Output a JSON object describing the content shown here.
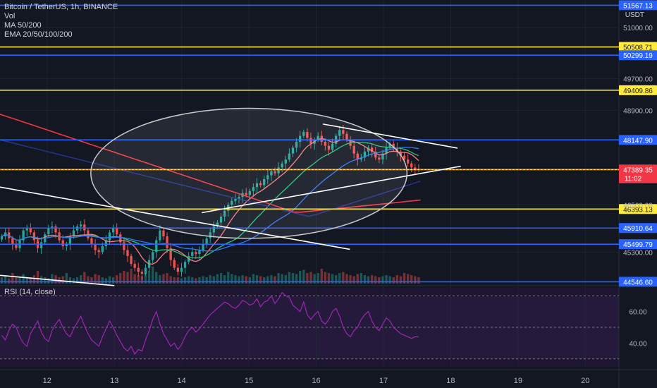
{
  "chart_data": {
    "type": "candlestick",
    "symbol": "Bitcoin / TetherUS, 1h, BINANCE",
    "currency": "USDT",
    "indicators": [
      "Vol",
      "MA 50/200",
      "EMA 20/50/100/200"
    ],
    "price_range": [
      44500,
      51700
    ],
    "price_ticks": [
      {
        "v": 51000,
        "label": "51000.00"
      },
      {
        "v": 49700,
        "label": "49700.00"
      },
      {
        "v": 48900,
        "label": "48900.00"
      },
      {
        "v": 46500,
        "label": "46500.00"
      },
      {
        "v": 45300,
        "label": "45300.00"
      }
    ],
    "x_range": [
      11.3,
      20.5
    ],
    "x_ticks": [
      {
        "x": 12,
        "label": "12"
      },
      {
        "x": 13,
        "label": "13"
      },
      {
        "x": 14,
        "label": "14"
      },
      {
        "x": 15,
        "label": "15"
      },
      {
        "x": 16,
        "label": "16"
      },
      {
        "x": 17,
        "label": "17"
      },
      {
        "x": 18,
        "label": "18"
      },
      {
        "x": 19,
        "label": "19"
      },
      {
        "x": 20,
        "label": "20"
      }
    ],
    "levels": [
      {
        "price": 51567.13,
        "label": "51567.13",
        "color": "#2962ff"
      },
      {
        "price": 50508.71,
        "label": "50508.71",
        "color": "#ffeb3b"
      },
      {
        "price": 50299.19,
        "label": "50299.19",
        "color": "#2962ff"
      },
      {
        "price": 49409.86,
        "label": "49409.86",
        "color": "#ffeb3b"
      },
      {
        "price": 48147.9,
        "label": "48147.90",
        "color": "#2962ff"
      },
      {
        "price": 47393.16,
        "label": "47393.16",
        "color": "#ffeb3b"
      },
      {
        "price": 46393.13,
        "label": "46393.13",
        "color": "#ffeb3b"
      },
      {
        "price": 45910.64,
        "label": "45910.64",
        "color": "#2962ff"
      },
      {
        "price": 45499.79,
        "label": "45499.79",
        "color": "#2962ff"
      },
      {
        "price": 44546.6,
        "label": "44546.60",
        "color": "#2962ff"
      }
    ],
    "last_price": {
      "price": 47389.35,
      "label": "47389.35",
      "countdown": "11:02",
      "color": "#f23645"
    },
    "closes": [
      45700,
      45800,
      45650,
      45500,
      45400,
      45600,
      45850,
      45900,
      45800,
      45600,
      45400,
      45550,
      45750,
      45900,
      45950,
      45800,
      45600,
      45450,
      45500,
      45700,
      45850,
      45950,
      46000,
      45850,
      45650,
      45500,
      45350,
      45300,
      45450,
      45600,
      45800,
      45900,
      45750,
      45550,
      45350,
      45200,
      45000,
      44900,
      44800,
      44750,
      44900,
      45100,
      45300,
      45600,
      45850,
      45700,
      45400,
      45100,
      44900,
      44800,
      44900,
      45050,
      45200,
      45300,
      45250,
      45350,
      45500,
      45650,
      45800,
      45950,
      46050,
      46200,
      46350,
      46500,
      46600,
      46650,
      46700,
      46800,
      46750,
      46850,
      46950,
      47050,
      47000,
      47150,
      47250,
      47350,
      47300,
      47450,
      47550,
      47650,
      47800,
      47950,
      48100,
      48250,
      48350,
      48200,
      48050,
      48150,
      48250,
      48100,
      48000,
      47900,
      48050,
      48250,
      48400,
      48300,
      48150,
      48000,
      47800,
      47650,
      47700,
      47850,
      47950,
      47850,
      47700,
      47650,
      47800,
      47950,
      48050,
      47950,
      47850,
      47750,
      47650,
      47550,
      47450,
      47400,
      47390
    ],
    "volume": [
      0.3,
      0.4,
      0.25,
      0.5,
      0.35,
      0.3,
      0.45,
      0.3,
      0.25,
      0.4,
      0.6,
      0.35,
      0.3,
      0.25,
      0.45,
      0.4,
      0.3,
      0.35,
      0.5,
      0.3,
      0.25,
      0.3,
      0.4,
      0.55,
      0.35,
      0.3,
      0.45,
      0.4,
      0.3,
      0.25,
      0.35,
      0.3,
      0.4,
      0.5,
      0.6,
      0.55,
      0.7,
      0.45,
      0.4,
      0.35,
      0.5,
      0.6,
      0.8,
      0.55,
      0.4,
      0.45,
      0.5,
      0.35,
      0.3,
      0.3,
      0.25,
      0.3,
      0.35,
      0.3,
      0.25,
      0.3,
      0.35,
      0.3,
      0.4,
      0.35,
      0.45,
      0.5,
      0.4,
      0.55,
      0.45,
      0.4,
      0.35,
      0.4,
      0.35,
      0.3,
      0.45,
      0.4,
      0.35,
      0.3,
      0.35,
      0.4,
      0.35,
      0.5,
      0.45,
      0.4,
      0.55,
      0.5,
      0.45,
      0.6,
      0.65,
      0.5,
      0.55,
      0.45,
      0.5,
      0.7,
      0.55,
      0.5,
      0.45,
      0.4,
      0.5,
      0.55,
      0.45,
      0.4,
      0.35,
      0.45,
      0.5,
      0.4,
      0.35,
      0.4,
      0.35,
      0.3,
      0.35,
      0.4,
      0.35,
      0.3,
      0.4,
      0.35,
      0.5,
      0.45,
      0.4,
      0.35,
      0.3
    ],
    "rsi": {
      "label": "RSI (14, close)",
      "range": [
        25,
        75
      ],
      "ticks": [
        {
          "v": 60,
          "label": "60.00"
        },
        {
          "v": 40,
          "label": "40.00"
        }
      ],
      "bands": [
        70,
        50,
        30
      ],
      "values": [
        45,
        42,
        48,
        52,
        50,
        44,
        40,
        38,
        46,
        50,
        54,
        47,
        43,
        41,
        48,
        52,
        55,
        50,
        46,
        44,
        49,
        53,
        57,
        51,
        46,
        42,
        40,
        38,
        44,
        49,
        54,
        50,
        45,
        41,
        37,
        35,
        38,
        33,
        36,
        35,
        42,
        48,
        55,
        60,
        52,
        46,
        42,
        38,
        40,
        36,
        39,
        44,
        48,
        50,
        47,
        49,
        52,
        55,
        58,
        60,
        62,
        64,
        66,
        65,
        63,
        62,
        64,
        67,
        66,
        64,
        65,
        68,
        63,
        66,
        67,
        70,
        65,
        68,
        72,
        70,
        69,
        64,
        62,
        60,
        66,
        58,
        55,
        58,
        60,
        54,
        52,
        55,
        60,
        62,
        57,
        50,
        46,
        44,
        48,
        50,
        55,
        58,
        60,
        54,
        50,
        48,
        52,
        56,
        54,
        50,
        48,
        46,
        45,
        44,
        43,
        44,
        44
      ]
    },
    "annotations": {
      "ellipse": {
        "cx": 15.0,
        "cy": 47300,
        "rx_days": 2.35,
        "ry_price": 1650
      },
      "trendlines": [
        {
          "x1": 11.3,
          "p1": 46950,
          "x2": 16.5,
          "p2": 45370,
          "color": "#ffffff"
        },
        {
          "x1": 14.3,
          "p1": 46300,
          "x2": 18.15,
          "p2": 47480,
          "color": "#ffffff"
        },
        {
          "x1": 16.1,
          "p1": 48550,
          "x2": 18.1,
          "p2": 47940,
          "color": "#ffffff"
        },
        {
          "x1": 11.3,
          "p1": 44710,
          "x2": 13.0,
          "p2": 44450,
          "color": "#ffffff"
        }
      ]
    },
    "series_colors": {
      "up": "#26a69a",
      "down": "#ef5350",
      "ma50": "#26c47a",
      "ma200": "#f23645",
      "ema20": "#f77c80",
      "ema100": "#3179f5",
      "ema200": "#283593",
      "rsi": "#9c27b0"
    }
  }
}
